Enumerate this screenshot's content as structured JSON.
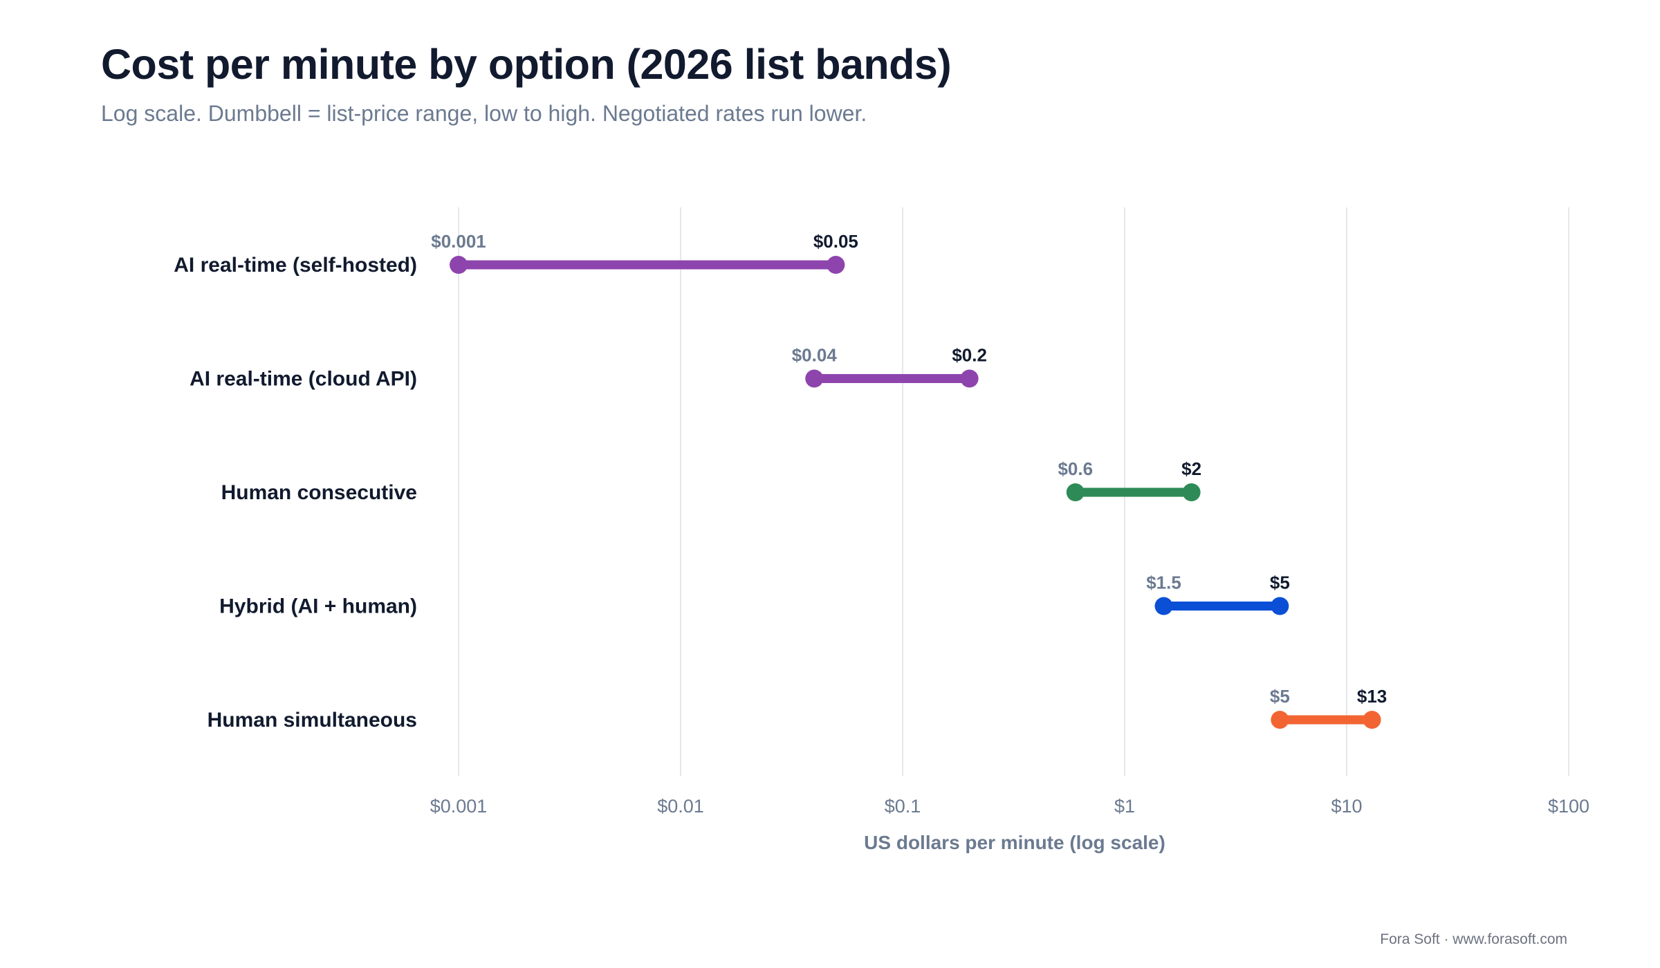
{
  "header": {
    "title": "Cost per minute by option (2026 list bands)",
    "subtitle": "Log scale. Dumbbell = list-price range, low to high. Negotiated rates run lower."
  },
  "footer": {
    "credit": "Fora Soft · www.forasoft.com"
  },
  "chart_data": {
    "type": "dumbbell",
    "title": "Cost per minute by option (2026 list bands)",
    "subtitle": "Log scale. Dumbbell = list-price range, low to high. Negotiated rates run lower.",
    "xlabel": "US dollars per minute (log scale)",
    "ylabel": "",
    "x_scale": "log",
    "xlim": [
      0.001,
      100
    ],
    "x_ticks": [
      {
        "value": 0.001,
        "label": "$0.001"
      },
      {
        "value": 0.01,
        "label": "$0.01"
      },
      {
        "value": 0.1,
        "label": "$0.1"
      },
      {
        "value": 1,
        "label": "$1"
      },
      {
        "value": 10,
        "label": "$10"
      },
      {
        "value": 100,
        "label": "$100"
      }
    ],
    "grid": true,
    "legend": "none",
    "rows": [
      {
        "category": "AI real-time (self-hosted)",
        "low": 0.001,
        "high": 0.05,
        "low_label": "$0.001",
        "high_label": "$0.05",
        "color": "#8e44ad"
      },
      {
        "category": "AI real-time (cloud API)",
        "low": 0.04,
        "high": 0.2,
        "low_label": "$0.04",
        "high_label": "$0.2",
        "color": "#8e44ad"
      },
      {
        "category": "Human consecutive",
        "low": 0.6,
        "high": 2,
        "low_label": "$0.6",
        "high_label": "$2",
        "color": "#2e8b57"
      },
      {
        "category": "Hybrid (AI + human)",
        "low": 1.5,
        "high": 5,
        "low_label": "$1.5",
        "high_label": "$5",
        "color": "#0b4fd6"
      },
      {
        "category": "Human simultaneous",
        "low": 5,
        "high": 13,
        "low_label": "$5",
        "high_label": "$13",
        "color": "#f26532"
      }
    ]
  },
  "colors": {
    "title": "#111a2e",
    "muted": "#6b7a90",
    "gridline": "#e5e7eb",
    "label_high": "#111a2e"
  }
}
